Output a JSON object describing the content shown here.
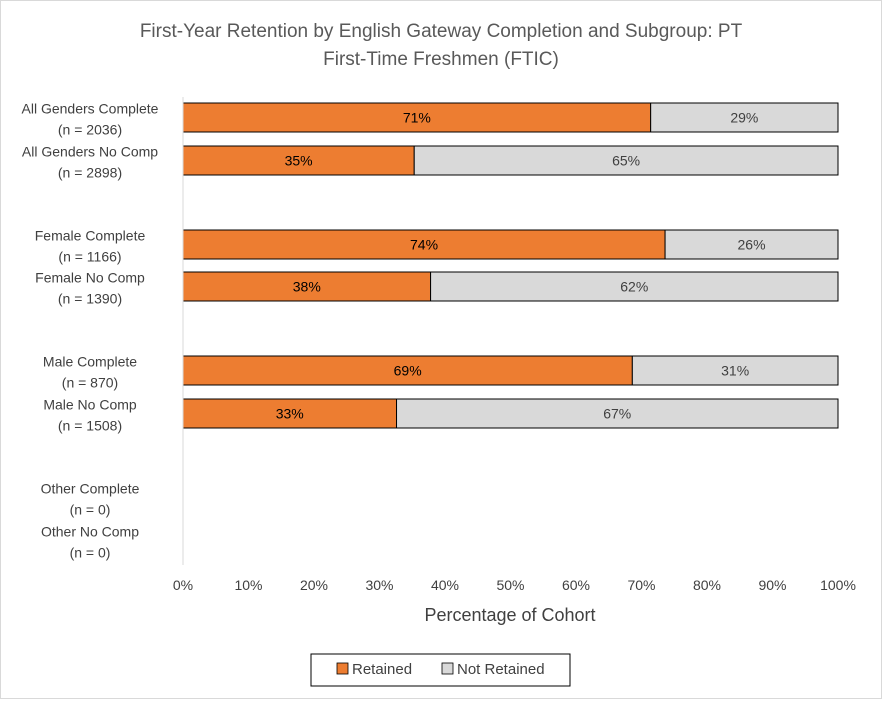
{
  "chart_data": {
    "type": "bar",
    "orientation": "horizontal",
    "stacked": true,
    "title": "First-Year Retention by English Gateway Completion and Subgroup: PT First-Time Freshmen (FTIC)",
    "title_lines": [
      "First-Year Retention by English Gateway Completion and Subgroup: PT",
      "First-Time Freshmen (FTIC)"
    ],
    "xlabel": "Percentage of Cohort",
    "xlim": [
      0,
      100
    ],
    "x_ticks": [
      "0%",
      "10%",
      "20%",
      "30%",
      "40%",
      "50%",
      "60%",
      "70%",
      "80%",
      "90%",
      "100%"
    ],
    "categories": [
      {
        "label": "All Genders Complete",
        "n": "(n = 2036)"
      },
      {
        "label": "All Genders No Comp",
        "n": "(n = 2898)"
      },
      {
        "label": "Female Complete",
        "n": "(n = 1166)"
      },
      {
        "label": "Female No Comp",
        "n": "(n = 1390)"
      },
      {
        "label": "Male Complete",
        "n": "(n = 870)"
      },
      {
        "label": "Male No Comp",
        "n": "(n = 1508)"
      },
      {
        "label": "Other Complete",
        "n": "(n = 0)"
      },
      {
        "label": "Other No Comp",
        "n": "(n = 0)"
      }
    ],
    "series": [
      {
        "name": "Retained",
        "color": "#ed7d31",
        "values": [
          71.4,
          35.3,
          73.6,
          37.8,
          68.6,
          32.6,
          null,
          null
        ],
        "labels": [
          "71%",
          "35%",
          "74%",
          "38%",
          "69%",
          "33%",
          "",
          ""
        ]
      },
      {
        "name": "Not Retained",
        "color": "#d9d9d9",
        "values": [
          28.6,
          64.7,
          26.4,
          62.2,
          31.4,
          67.4,
          null,
          null
        ],
        "labels": [
          "29%",
          "65%",
          "26%",
          "62%",
          "31%",
          "67%",
          "",
          ""
        ]
      }
    ],
    "grid": false,
    "legend_position": "bottom"
  }
}
